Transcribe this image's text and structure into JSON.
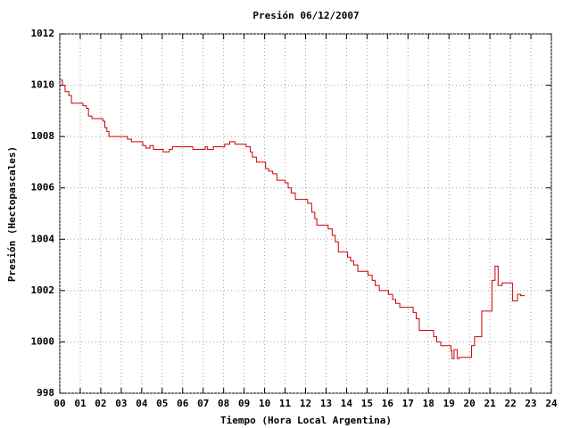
{
  "chart_data": {
    "type": "step",
    "title": "Presión 06/12/2007",
    "xlabel": "Tiempo (Hora Local Argentina)",
    "ylabel": "Presión (Hectopascales)",
    "xlim": [
      0,
      24
    ],
    "ylim": [
      998,
      1012
    ],
    "xticks": [
      {
        "value": 0,
        "label": "00"
      },
      {
        "value": 1,
        "label": "01"
      },
      {
        "value": 2,
        "label": "02"
      },
      {
        "value": 3,
        "label": "03"
      },
      {
        "value": 4,
        "label": "04"
      },
      {
        "value": 5,
        "label": "05"
      },
      {
        "value": 6,
        "label": "06"
      },
      {
        "value": 7,
        "label": "07"
      },
      {
        "value": 8,
        "label": "08"
      },
      {
        "value": 9,
        "label": "09"
      },
      10,
      11,
      12,
      13,
      14,
      15,
      16,
      17,
      18,
      19,
      20,
      21,
      22,
      23,
      24
    ],
    "yticks": [
      998,
      1000,
      1002,
      1004,
      1006,
      1008,
      1010,
      1012
    ],
    "grid": true,
    "color": "#cc0000",
    "x": [
      0.0,
      0.13,
      0.26,
      0.44,
      0.57,
      1.13,
      1.3,
      1.4,
      1.57,
      2.1,
      2.2,
      2.3,
      2.4,
      3.3,
      3.5,
      4.05,
      4.2,
      4.4,
      4.57,
      5.05,
      5.35,
      5.5,
      6.5,
      7.1,
      7.2,
      7.5,
      8.05,
      8.3,
      8.55,
      9.1,
      9.3,
      9.4,
      9.6,
      10.05,
      10.2,
      10.4,
      10.6,
      11.0,
      11.15,
      11.3,
      11.5,
      12.1,
      12.3,
      12.45,
      12.55,
      13.1,
      13.3,
      13.45,
      13.6,
      14.05,
      14.2,
      14.35,
      14.55,
      15.05,
      15.25,
      15.4,
      15.6,
      16.05,
      16.25,
      16.4,
      16.6,
      17.25,
      17.4,
      17.55,
      18.25,
      18.4,
      18.6,
      19.1,
      19.15,
      19.25,
      19.4,
      19.5,
      20.1,
      20.25,
      20.6,
      21.1,
      21.25,
      21.4,
      21.6,
      22.1,
      22.35,
      22.5,
      22.7
    ],
    "values": [
      1010.2,
      1010.0,
      1009.75,
      1009.6,
      1009.3,
      1009.2,
      1009.1,
      1008.8,
      1008.7,
      1008.6,
      1008.35,
      1008.2,
      1008.0,
      1007.9,
      1007.8,
      1007.65,
      1007.55,
      1007.65,
      1007.5,
      1007.4,
      1007.5,
      1007.6,
      1007.5,
      1007.6,
      1007.5,
      1007.6,
      1007.7,
      1007.8,
      1007.7,
      1007.6,
      1007.4,
      1007.2,
      1007.0,
      1006.75,
      1006.65,
      1006.55,
      1006.3,
      1006.2,
      1006.0,
      1005.8,
      1005.55,
      1005.4,
      1005.05,
      1004.8,
      1004.55,
      1004.4,
      1004.15,
      1003.9,
      1003.5,
      1003.3,
      1003.15,
      1003.0,
      1002.75,
      1002.6,
      1002.4,
      1002.2,
      1002.0,
      1001.85,
      1001.65,
      1001.5,
      1001.35,
      1001.15,
      1000.9,
      1000.45,
      1000.2,
      1000.0,
      999.85,
      999.65,
      999.35,
      999.7,
      999.35,
      999.4,
      999.85,
      1000.2,
      1001.2,
      1002.4,
      1002.95,
      1002.2,
      1002.3,
      1001.6,
      1001.85,
      1001.8,
      1001.8
    ]
  }
}
